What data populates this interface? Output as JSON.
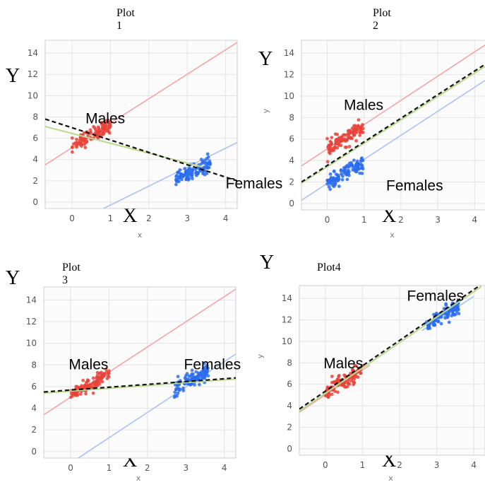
{
  "colors": {
    "male": "#e8433a",
    "female": "#2a6cf0",
    "male_line": "#f4a4a4",
    "female_line": "#a9c1f5",
    "fit_line": "#111111",
    "fit_under": "#b9d98e"
  },
  "chart_data": [
    {
      "type": "scatter",
      "title": "Plot 1",
      "xlabel": "x",
      "ylabel": "",
      "big_x": "X",
      "big_y": "Y",
      "xlim": [
        -0.7,
        4.3
      ],
      "ylim": [
        -0.6,
        15.2
      ],
      "xticks": [
        "0",
        "1",
        "2",
        "3",
        "4"
      ],
      "yticks": [
        "0",
        "2",
        "4",
        "6",
        "8",
        "10",
        "12",
        "14"
      ],
      "grid": true,
      "groups": [
        {
          "name": "Males",
          "x_range": [
            0,
            1
          ],
          "center": [
            0.5,
            6.3
          ],
          "label_at": [
            0.35,
            7.4
          ]
        },
        {
          "name": "Females",
          "x_range": [
            2.7,
            3.6
          ],
          "center": [
            3.15,
            2.9
          ],
          "label_at": [
            4.0,
            1.3
          ]
        }
      ],
      "male_line": [
        [
          -0.7,
          3.5
        ],
        [
          4.3,
          15.0
        ]
      ],
      "female_line": [
        [
          -0.7,
          -3.3
        ],
        [
          4.3,
          5.6
        ]
      ],
      "fit_line": [
        [
          -0.7,
          7.8
        ],
        [
          4.3,
          2.0
        ]
      ],
      "fit_under_line": [
        [
          -0.7,
          7.1
        ],
        [
          3.4,
          3.3
        ]
      ]
    },
    {
      "type": "scatter",
      "title": "Plot 2",
      "xlabel": "x",
      "ylabel": "y",
      "big_x": "X",
      "big_y": "Y",
      "xlim": [
        -0.7,
        4.3
      ],
      "ylim": [
        -0.6,
        15.2
      ],
      "xticks": [
        "0",
        "1",
        "2",
        "3",
        "4"
      ],
      "yticks": [
        "0",
        "2",
        "4",
        "6",
        "8",
        "10",
        "12",
        "14"
      ],
      "grid": true,
      "groups": [
        {
          "name": "Males",
          "x_range": [
            0,
            1
          ],
          "center": [
            0.45,
            6.0
          ],
          "label_at": [
            0.45,
            8.7
          ]
        },
        {
          "name": "Females",
          "x_range": [
            0,
            1
          ],
          "center": [
            0.5,
            2.8
          ],
          "label_at": [
            1.6,
            1.2
          ]
        }
      ],
      "male_line": [
        [
          -0.7,
          3.5
        ],
        [
          4.3,
          14.8
        ]
      ],
      "female_line": [
        [
          -0.7,
          0.3
        ],
        [
          4.3,
          11.5
        ]
      ],
      "fit_line": [
        [
          -0.7,
          2.0
        ],
        [
          4.3,
          13.0
        ]
      ],
      "fit_under_line": [
        [
          -0.7,
          1.9
        ],
        [
          4.3,
          12.8
        ]
      ]
    },
    {
      "type": "scatter",
      "title": "Plot 3",
      "xlabel": "x",
      "ylabel": "",
      "big_x": "X",
      "big_y": "Y",
      "xlim": [
        -0.7,
        4.3
      ],
      "ylim": [
        -0.6,
        15.2
      ],
      "xticks": [
        "0",
        "1",
        "2",
        "3",
        "4"
      ],
      "yticks": [
        "0",
        "2",
        "4",
        "6",
        "8",
        "10",
        "12",
        "14"
      ],
      "grid": true,
      "groups": [
        {
          "name": "Males",
          "x_range": [
            0,
            1
          ],
          "center": [
            0.5,
            6.2
          ],
          "label_at": [
            -0.05,
            7.6
          ]
        },
        {
          "name": "Females",
          "x_range": [
            2.7,
            3.6
          ],
          "center": [
            3.15,
            6.6
          ],
          "label_at": [
            2.95,
            7.6
          ]
        }
      ],
      "male_line": [
        [
          -0.7,
          3.4
        ],
        [
          4.3,
          15.0
        ]
      ],
      "female_line": [
        [
          0.2,
          -0.6
        ],
        [
          4.3,
          9.0
        ]
      ],
      "fit_line": [
        [
          -0.7,
          5.5
        ],
        [
          4.3,
          6.8
        ]
      ],
      "fit_under_line": [
        [
          -0.7,
          5.4
        ],
        [
          4.3,
          6.7
        ]
      ]
    },
    {
      "type": "scatter",
      "title": "Plot4",
      "xlabel": "x",
      "ylabel": "y",
      "big_x": "X",
      "big_y": "Y",
      "xlim": [
        -0.7,
        4.3
      ],
      "ylim": [
        -0.6,
        15.2
      ],
      "xticks": [
        "0",
        "1",
        "2",
        "3",
        "4"
      ],
      "yticks": [
        "0",
        "2",
        "4",
        "6",
        "8",
        "10",
        "12",
        "14"
      ],
      "grid": true,
      "groups": [
        {
          "name": "Males",
          "x_range": [
            0,
            1
          ],
          "center": [
            0.5,
            6.3
          ],
          "label_at": [
            -0.05,
            7.5
          ]
        },
        {
          "name": "Females",
          "x_range": [
            2.7,
            3.6
          ],
          "center": [
            3.15,
            12.4
          ],
          "label_at": [
            2.2,
            13.8
          ]
        }
      ],
      "male_line": [
        [
          -0.7,
          3.4
        ],
        [
          1.2,
          7.8
        ]
      ],
      "female_line": [
        [
          2.6,
          11.0
        ],
        [
          4.0,
          14.2
        ]
      ],
      "fit_line": [
        [
          -0.7,
          3.7
        ],
        [
          4.2,
          15.3
        ]
      ],
      "fit_under_line": [
        [
          -0.7,
          3.5
        ],
        [
          4.2,
          15.1
        ]
      ]
    }
  ]
}
